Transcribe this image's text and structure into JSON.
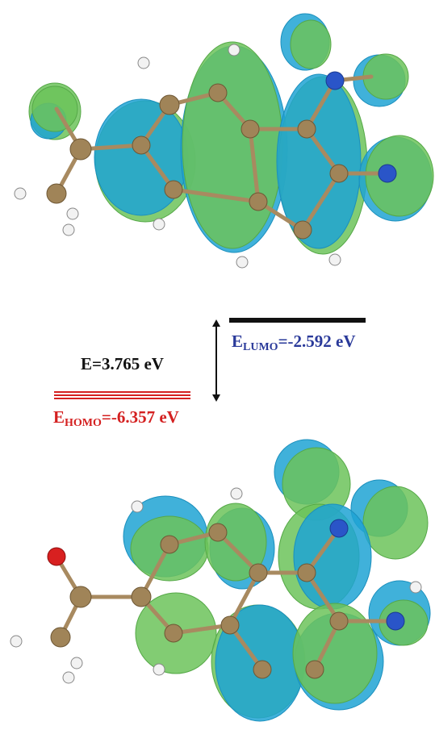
{
  "energy_gap": {
    "label": "E=3.765 eV"
  },
  "lumo": {
    "symbol": "E",
    "subscript": "LUMO",
    "value": "=-2.592 eV"
  },
  "homo": {
    "symbol": "E",
    "subscript": "HOMO",
    "value": "=-6.357 eV"
  }
}
